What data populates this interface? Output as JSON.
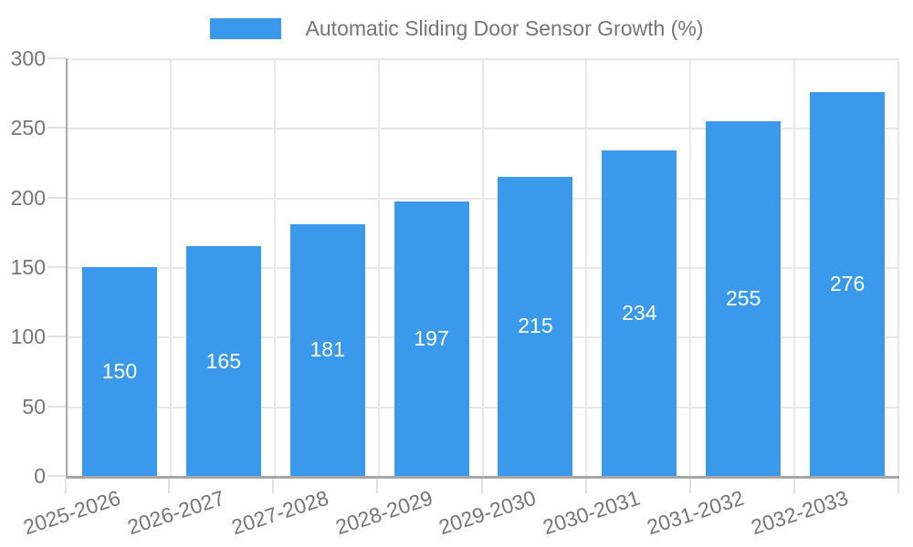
{
  "chart_data": {
    "type": "bar",
    "title": "Automatic Sliding Door Sensor Growth (%)",
    "categories": [
      "2025-2026",
      "2026-2027",
      "2027-2028",
      "2028-2029",
      "2029-2030",
      "2030-2031",
      "2031-2032",
      "2032-2033"
    ],
    "values": [
      150,
      165,
      181,
      197,
      215,
      234,
      255,
      276
    ],
    "value_labels": [
      "150",
      "165",
      "181",
      "197",
      "215",
      "234",
      "255",
      "276"
    ],
    "xlabel": "",
    "ylabel": "",
    "ylim": [
      0,
      300
    ],
    "yticks": [
      0,
      50,
      100,
      150,
      200,
      250,
      300
    ],
    "grid": true,
    "legend_position": "top",
    "legend_entries": [
      "Automatic Sliding Door Sensor Growth (%)"
    ],
    "bar_color": "#3b99ec",
    "bar_label_color": "#ffffff"
  },
  "legend": {
    "label": "Automatic Sliding Door Sensor Growth (%)",
    "swatch_color": "#3b99ec"
  },
  "colors": {
    "background": "#ffffff",
    "bar": "#3b99ec",
    "axis_line": "#a6a6a6",
    "gridline": "#e8e8e8",
    "tick_mark": "#e0e0e0",
    "tick_text": "#757575",
    "legend_text": "#757575"
  }
}
